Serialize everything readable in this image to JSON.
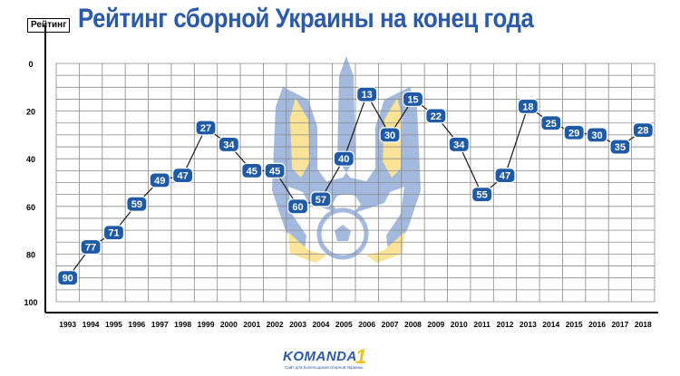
{
  "title": "Рейтинг сборной Украины на конец года",
  "brand": {
    "name": "KOMANDA",
    "number": "1",
    "tagline": "Сайт для болельщиков сборной Украины"
  },
  "colors": {
    "title": "#2a5aa8",
    "marker": "#1f5aa6",
    "line": "#1a1a1a",
    "grid": "#8a8a8a",
    "emblem_blue": "#3565b8",
    "emblem_yellow": "#f2c21b"
  },
  "chart_data": {
    "type": "line",
    "title": "Рейтинг сборной Украины на конец года",
    "ylabel": "Рейтинг",
    "xlabel": "",
    "y_inverted": true,
    "ylim": [
      0,
      100
    ],
    "yticks": [
      0,
      20,
      40,
      60,
      80,
      100
    ],
    "grid": true,
    "x": [
      "1993",
      "1994",
      "1995",
      "1996",
      "1997",
      "1998",
      "1999",
      "2000",
      "2001",
      "2002",
      "2003",
      "2004",
      "2005",
      "2006",
      "2007",
      "2008",
      "2009",
      "2010",
      "2011",
      "2012",
      "2013",
      "2014",
      "2015",
      "2016",
      "2017",
      "2018"
    ],
    "series": [
      {
        "values": [
          90,
          77,
          71,
          59,
          49,
          47,
          27,
          34,
          45,
          45,
          60,
          57,
          40,
          13,
          30,
          15,
          22,
          34,
          55,
          47,
          18,
          25,
          29,
          30,
          35,
          28
        ]
      }
    ]
  }
}
